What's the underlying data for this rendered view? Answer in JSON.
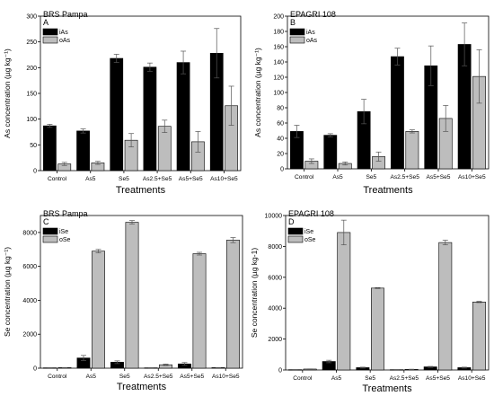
{
  "chart_data": [
    {
      "type": "bar",
      "title": "BRS Pampa",
      "panel_letter": "A",
      "xlabel": "Treatments",
      "ylabel": "As concentration (µg kg⁻¹)",
      "ylim": [
        0,
        300
      ],
      "yticks": [
        "0",
        "50",
        "100",
        "150",
        "200",
        "250",
        "300"
      ],
      "categories": [
        "Control",
        "As5",
        "Se5",
        "As2.5+Se5",
        "As5+Se5",
        "As10+Se5"
      ],
      "legend_position": "top-left",
      "series": [
        {
          "name": "iAs",
          "color": "#000000",
          "values": [
            87,
            77,
            218,
            201,
            210,
            228
          ],
          "errors": [
            3,
            4,
            8,
            8,
            22,
            48
          ]
        },
        {
          "name": "oAs",
          "color": "#bdbdbd",
          "values": [
            13,
            15,
            59,
            86,
            56,
            126
          ],
          "errors": [
            3,
            3,
            13,
            12,
            20,
            38
          ]
        }
      ]
    },
    {
      "type": "bar",
      "title": "EPAGRI 108",
      "panel_letter": "B",
      "xlabel": "Treatments",
      "ylabel": "As concentration (µg kg⁻¹)",
      "ylim": [
        0,
        200
      ],
      "yticks": [
        "0",
        "20",
        "40",
        "60",
        "80",
        "100",
        "120",
        "140",
        "160",
        "180",
        "200"
      ],
      "categories": [
        "Control",
        "As5",
        "Se5",
        "As2.5+Se5",
        "As5+Se5",
        "As10+Se5"
      ],
      "legend_position": "top-left",
      "series": [
        {
          "name": "iAs",
          "color": "#000000",
          "values": [
            49,
            44,
            75,
            147,
            135,
            163
          ],
          "errors": [
            8,
            2,
            16,
            11,
            26,
            28
          ]
        },
        {
          "name": "oAs",
          "color": "#bdbdbd",
          "values": [
            10,
            7,
            16,
            49,
            66,
            121
          ],
          "errors": [
            3,
            2,
            6,
            2,
            17,
            35
          ]
        }
      ]
    },
    {
      "type": "bar",
      "title": "BRS Pampa",
      "panel_letter": "C",
      "xlabel": "Treatments",
      "ylabel": "Se concentration (µg kg⁻¹)",
      "ylim": [
        0,
        9000
      ],
      "yticks": [
        "0",
        "2000",
        "4000",
        "6000",
        "8000"
      ],
      "categories": [
        "Control",
        "As5",
        "Se5",
        "As2.5+Se5",
        "As5+Se5",
        "As10+Se5"
      ],
      "legend_position": "top-left",
      "series": [
        {
          "name": "iSe",
          "color": "#000000",
          "values": [
            20,
            600,
            350,
            20,
            250,
            30
          ],
          "errors": [
            5,
            150,
            80,
            5,
            80,
            5
          ]
        },
        {
          "name": "oSe",
          "color": "#bdbdbd",
          "values": [
            30,
            6900,
            8600,
            200,
            6750,
            7550
          ],
          "errors": [
            10,
            100,
            100,
            40,
            80,
            150
          ]
        }
      ]
    },
    {
      "type": "bar",
      "title": "EPAGRI 108",
      "panel_letter": "D",
      "xlabel": "Treatments",
      "ylabel": "Se concentration (µg kg-1)",
      "ylim": [
        0,
        10000
      ],
      "yticks": [
        "0",
        "2000",
        "4000",
        "6000",
        "8000",
        "10000"
      ],
      "categories": [
        "Control",
        "As5",
        "Se5",
        "As2.5+Se5",
        "As5+Se5",
        "As10+Se5"
      ],
      "legend_position": "top-left",
      "series": [
        {
          "name": "iSe",
          "color": "#000000",
          "values": [
            20,
            550,
            150,
            20,
            200,
            150
          ],
          "errors": [
            5,
            80,
            30,
            5,
            30,
            30
          ]
        },
        {
          "name": "oSe",
          "color": "#bdbdbd",
          "values": [
            60,
            8900,
            5300,
            40,
            8250,
            4400
          ],
          "errors": [
            10,
            800,
            30,
            10,
            150,
            40
          ]
        }
      ]
    }
  ]
}
